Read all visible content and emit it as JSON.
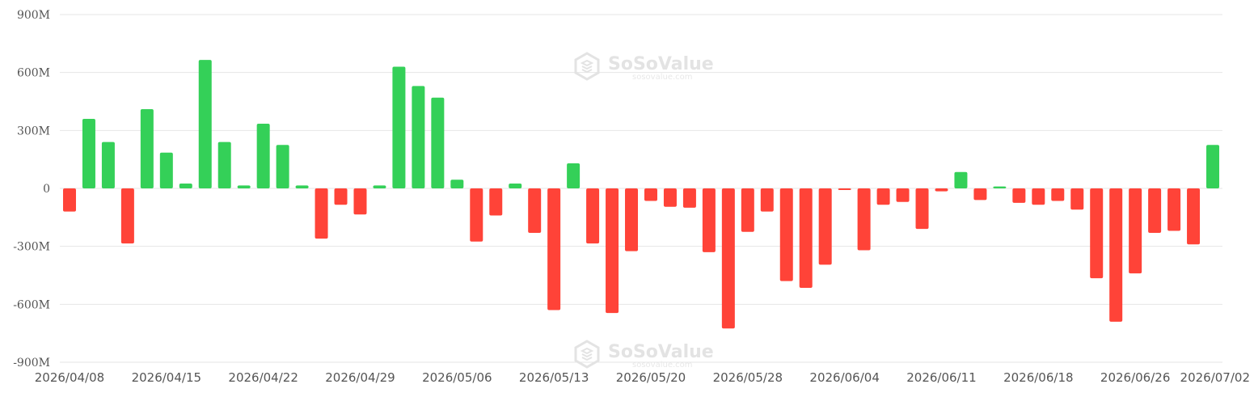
{
  "watermark": {
    "name": "SoSoValue",
    "url": "sosovalue.com"
  },
  "chart_data": {
    "type": "bar",
    "ylim": [
      -900,
      900
    ],
    "yticks": [
      900,
      600,
      300,
      0,
      -300,
      -600,
      -900
    ],
    "ytick_labels": [
      "900M",
      "600M",
      "300M",
      "0",
      "-300M",
      "-600M",
      "-900M"
    ],
    "xtick_labels": [
      {
        "index": 0,
        "label": "2026/04/08"
      },
      {
        "index": 5,
        "label": "2026/04/15"
      },
      {
        "index": 10,
        "label": "2026/04/22"
      },
      {
        "index": 15,
        "label": "2026/04/29"
      },
      {
        "index": 20,
        "label": "2026/05/06"
      },
      {
        "index": 25,
        "label": "2026/05/13"
      },
      {
        "index": 30,
        "label": "2026/05/20"
      },
      {
        "index": 35,
        "label": "2026/05/28"
      },
      {
        "index": 40,
        "label": "2026/06/04"
      },
      {
        "index": 45,
        "label": "2026/06/11"
      },
      {
        "index": 50,
        "label": "2026/06/18"
      },
      {
        "index": 55,
        "label": "2026/06/26"
      },
      {
        "index": 59,
        "label": "2026/07/02"
      }
    ],
    "values": [
      -120,
      360,
      240,
      -285,
      410,
      185,
      25,
      665,
      240,
      15,
      335,
      225,
      15,
      -260,
      -85,
      -135,
      15,
      630,
      530,
      470,
      45,
      -275,
      -140,
      25,
      -230,
      -630,
      130,
      -285,
      -645,
      -325,
      -65,
      -95,
      -100,
      -330,
      -725,
      -225,
      -120,
      -480,
      -515,
      -395,
      -3,
      -320,
      -85,
      -70,
      -210,
      -15,
      85,
      -60,
      10,
      -75,
      -85,
      -65,
      -110,
      -465,
      -690,
      -440,
      -230,
      -220,
      -290,
      225
    ],
    "positive_color": "#34d058",
    "negative_color": "#ff4338",
    "grid": true
  }
}
